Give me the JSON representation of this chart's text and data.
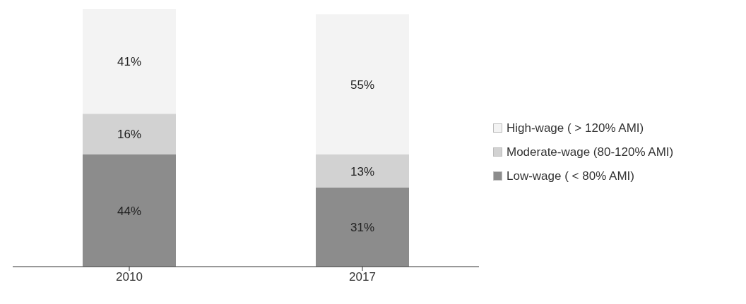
{
  "chart_data": {
    "type": "bar",
    "stacked": true,
    "categories": [
      "2010",
      "2017"
    ],
    "series": [
      {
        "name": "Low-wage ( < 80% AMI)",
        "color": "#8c8c8c",
        "values": [
          44,
          31
        ],
        "value_labels": [
          "44%",
          "31%"
        ]
      },
      {
        "name": "Moderate-wage (80-120% AMI)",
        "color": "#d2d2d2",
        "values": [
          16,
          13
        ],
        "value_labels": [
          "16%",
          "13%"
        ]
      },
      {
        "name": "High-wage ( > 120% AMI)",
        "color": "#f3f3f3",
        "values": [
          41,
          55
        ],
        "value_labels": [
          "41%",
          "55%"
        ]
      }
    ],
    "legend": "right",
    "grid": false
  }
}
